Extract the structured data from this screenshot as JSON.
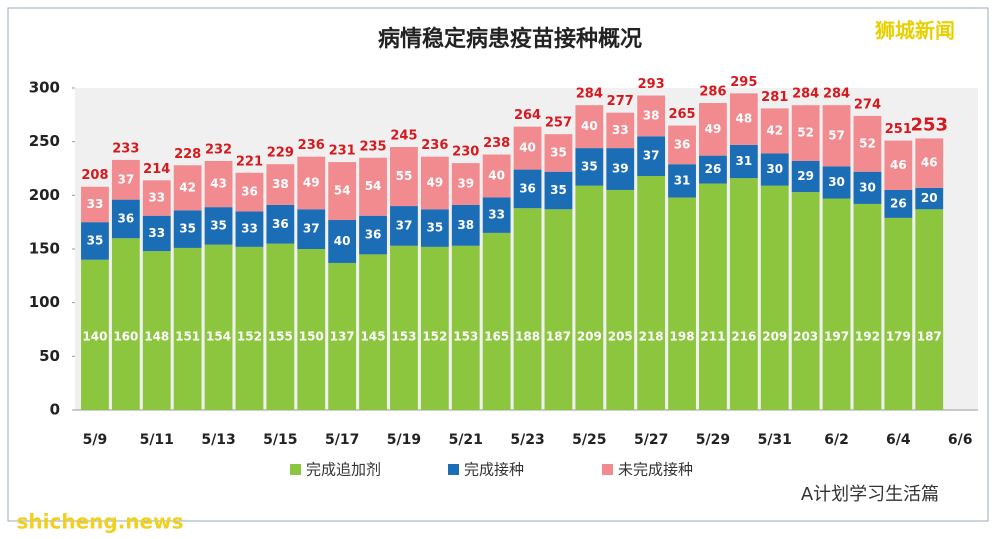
{
  "chart_data": {
    "type": "stacked_bar",
    "title": "病情稳定病患疫苗接种概况",
    "categories": [
      "5/9",
      null,
      "5/11",
      null,
      "5/13",
      null,
      "5/15",
      null,
      "5/17",
      null,
      "5/19",
      null,
      "5/21",
      null,
      "5/23",
      null,
      "5/25",
      null,
      "5/27",
      null,
      "5/29",
      null,
      "5/31",
      null,
      "6/2",
      null,
      "6/4",
      null,
      "6/6"
    ],
    "series": [
      {
        "name": "完成追加剂",
        "color": "#8cc63f",
        "values": [
          140,
          160,
          148,
          151,
          154,
          152,
          155,
          150,
          137,
          145,
          153,
          152,
          153,
          165,
          188,
          187,
          209,
          205,
          218,
          198,
          211,
          216,
          209,
          203,
          197,
          192,
          179,
          187,
          null
        ]
      },
      {
        "name": "完成接种",
        "color": "#1b6db6",
        "values": [
          35,
          36,
          33,
          35,
          35,
          33,
          36,
          37,
          40,
          36,
          37,
          35,
          38,
          33,
          36,
          35,
          35,
          39,
          37,
          31,
          26,
          31,
          30,
          29,
          30,
          30,
          26,
          20,
          null
        ]
      },
      {
        "name": "未完成接种",
        "color": "#f28b90",
        "values": [
          33,
          37,
          33,
          42,
          43,
          36,
          38,
          49,
          54,
          54,
          55,
          49,
          39,
          40,
          40,
          35,
          40,
          33,
          38,
          36,
          49,
          48,
          42,
          52,
          57,
          52,
          46,
          46,
          null
        ]
      }
    ],
    "totals": [
      208,
      233,
      214,
      228,
      232,
      221,
      229,
      236,
      231,
      235,
      245,
      236,
      230,
      238,
      264,
      257,
      284,
      277,
      293,
      265,
      286,
      295,
      281,
      284,
      284,
      274,
      251,
      253,
      null
    ],
    "ylim": [
      0,
      300
    ],
    "yticks": [
      0,
      50,
      100,
      150,
      200,
      250,
      300
    ],
    "grid": false,
    "watermark": "狮城新闻",
    "account": "A计划学习生活篇",
    "site": "shicheng.news"
  }
}
